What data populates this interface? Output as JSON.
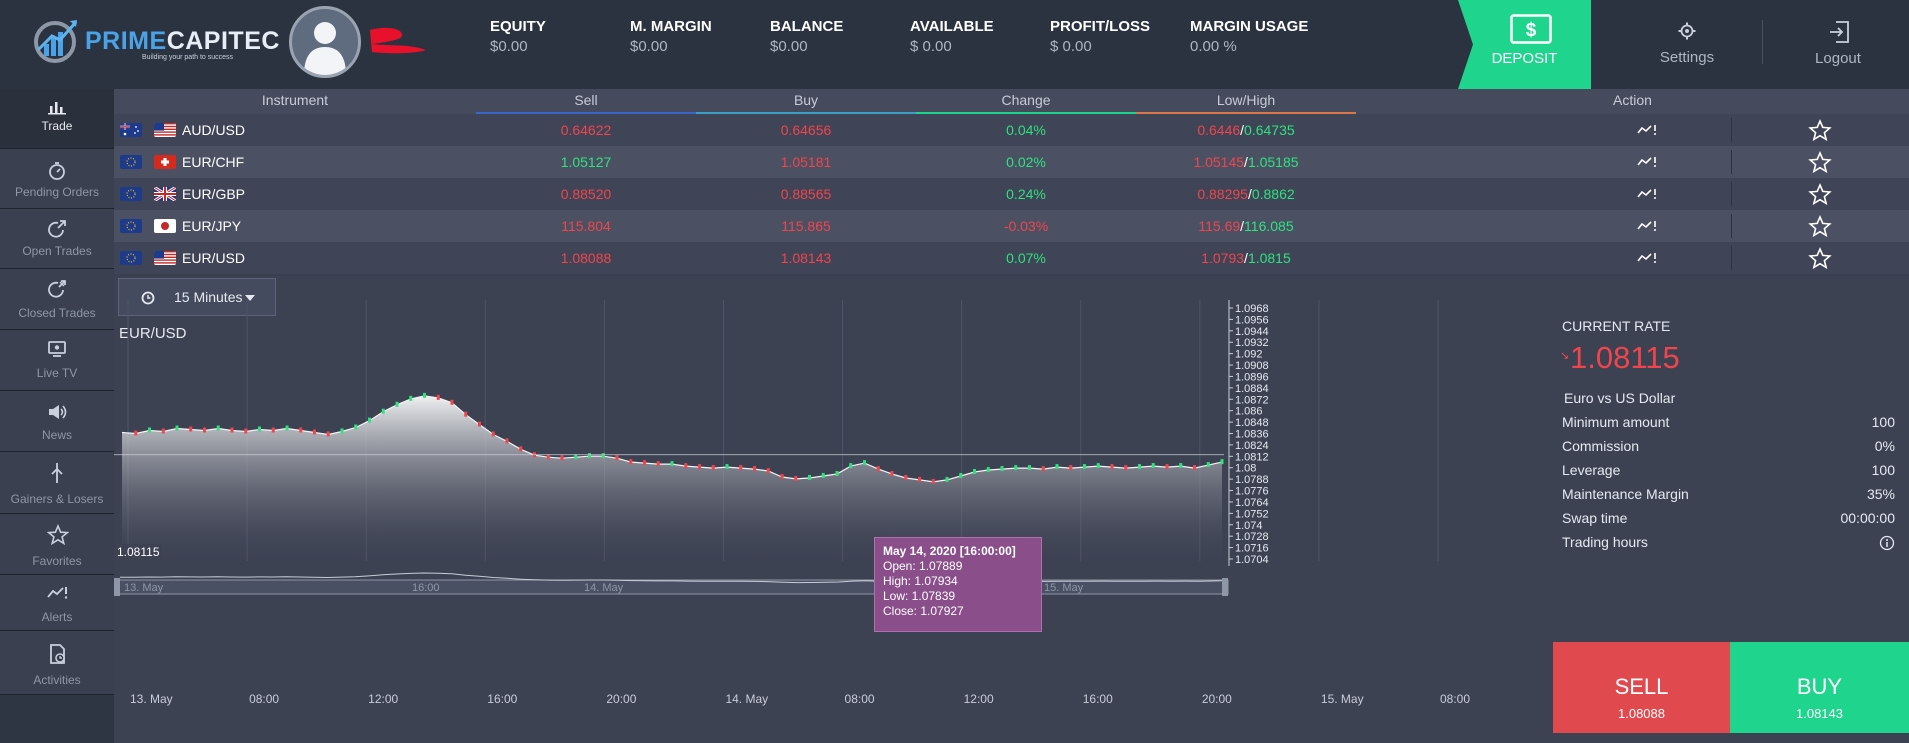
{
  "brand": {
    "name_part1": "PRIME",
    "name_part2": "CAPITEC",
    "tagline": "Building your path to success"
  },
  "header": {
    "metrics": [
      {
        "label": "EQUITY",
        "value": "$0.00"
      },
      {
        "label": "M. MARGIN",
        "value": "$0.00"
      },
      {
        "label": "BALANCE",
        "value": "$0.00"
      },
      {
        "label": "AVAILABLE",
        "value": "$ 0.00"
      },
      {
        "label": "PROFIT/LOSS",
        "value": "$ 0.00"
      },
      {
        "label": "MARGIN USAGE",
        "value": "0.00 %"
      }
    ],
    "deposit_label": "DEPOSIT",
    "settings_label": "Settings",
    "logout_label": "Logout"
  },
  "sidebar": {
    "items": [
      {
        "label": "Trade",
        "icon": "chart-bars-icon",
        "active": true
      },
      {
        "label": "Pending Orders",
        "icon": "timer-icon"
      },
      {
        "label": "Open Trades",
        "icon": "open-trade-icon"
      },
      {
        "label": "Closed Trades",
        "icon": "closed-trade-icon"
      },
      {
        "label": "Live TV",
        "icon": "tv-icon"
      },
      {
        "label": "News",
        "icon": "megaphone-icon"
      },
      {
        "label": "Gainers & Losers",
        "icon": "gainers-icon"
      },
      {
        "label": "Favorites",
        "icon": "star-icon"
      },
      {
        "label": "Alerts",
        "icon": "alert-icon"
      },
      {
        "label": "Activities",
        "icon": "activity-icon"
      }
    ]
  },
  "table": {
    "columns": [
      "Instrument",
      "Sell",
      "Buy",
      "Change",
      "Low/High",
      "Action"
    ],
    "rows": [
      {
        "instrument": "AUD/USD",
        "sell": "0.64622",
        "buy": "0.64656",
        "change": "0.04%",
        "low": "0.6446",
        "high": "0.64735",
        "sell_color": "red",
        "buy_color": "red",
        "change_color": "green",
        "low_color": "red",
        "high_color": "green"
      },
      {
        "instrument": "EUR/CHF",
        "sell": "1.05127",
        "buy": "1.05181",
        "change": "0.02%",
        "low": "1.05145",
        "high": "1.05185",
        "sell_color": "green",
        "buy_color": "red",
        "change_color": "green",
        "low_color": "red",
        "high_color": "green"
      },
      {
        "instrument": "EUR/GBP",
        "sell": "0.88520",
        "buy": "0.88565",
        "change": "0.24%",
        "low": "0.88295",
        "high": "0.8862",
        "sell_color": "red",
        "buy_color": "red",
        "change_color": "green",
        "low_color": "red",
        "high_color": "green"
      },
      {
        "instrument": "EUR/JPY",
        "sell": "115.804",
        "buy": "115.865",
        "change": "-0.03%",
        "low": "115.69",
        "high": "116.085",
        "sell_color": "red",
        "buy_color": "red",
        "change_color": "red",
        "low_color": "red",
        "high_color": "green"
      },
      {
        "instrument": "EUR/USD",
        "sell": "1.08088",
        "buy": "1.08143",
        "change": "0.07%",
        "low": "1.0793",
        "high": "1.0815",
        "sell_color": "red",
        "buy_color": "red",
        "change_color": "green",
        "low_color": "red",
        "high_color": "green"
      }
    ],
    "low_high_separator": "/"
  },
  "chart_toolbar": {
    "timeframe": "15 Minutes"
  },
  "chart_data": {
    "type": "line",
    "title": "EUR/USD",
    "xlabel": "",
    "ylabel": "",
    "ylim": [
      1.0704,
      1.0968
    ],
    "y_ticks": [
      "1.0968",
      "1.0956",
      "1.0944",
      "1.0932",
      "1.092",
      "1.0908",
      "1.0896",
      "1.0884",
      "1.0872",
      "1.086",
      "1.0848",
      "1.0836",
      "1.0824",
      "1.0812",
      "1.08",
      "1.0788",
      "1.0776",
      "1.0764",
      "1.0752",
      "1.074",
      "1.0728",
      "1.0716",
      "1.0704"
    ],
    "x_ticks": [
      "13. May",
      "08:00",
      "12:00",
      "16:00",
      "20:00",
      "14. May",
      "08:00",
      "12:00",
      "16:00",
      "20:00",
      "15. May",
      "08:00"
    ],
    "navigator_ticks": [
      "13. May",
      "16:00",
      "14. May",
      "16:00",
      "15. May"
    ],
    "series": [
      {
        "values": [
          1.0834,
          1.0833,
          1.0836,
          1.0835,
          1.0838,
          1.0837,
          1.0836,
          1.0838,
          1.0836,
          1.0835,
          1.0837,
          1.0836,
          1.0838,
          1.0836,
          1.0834,
          1.0832,
          1.0835,
          1.0839,
          1.0846,
          1.0855,
          1.0862,
          1.0868,
          1.0871,
          1.0869,
          1.0864,
          1.0852,
          1.0842,
          1.0832,
          1.0825,
          1.0817,
          1.0811,
          1.0809,
          1.0808,
          1.0809,
          1.081,
          1.081,
          1.0808,
          1.0804,
          1.0803,
          1.0802,
          1.0802,
          1.08,
          1.0799,
          1.0798,
          1.0799,
          1.0798,
          1.0797,
          1.0795,
          1.0789,
          1.0787,
          1.0788,
          1.079,
          1.0792,
          1.08,
          1.0803,
          1.0797,
          1.0792,
          1.0788,
          1.0786,
          1.0784,
          1.0786,
          1.079,
          1.0794,
          1.0796,
          1.0797,
          1.0798,
          1.0798,
          1.0797,
          1.0799,
          1.0798,
          1.0799,
          1.08,
          1.0799,
          1.0798,
          1.0799,
          1.08,
          1.0799,
          1.08,
          1.0798,
          1.0801,
          1.0804
        ]
      }
    ],
    "current_value": "1.08115",
    "tooltip": {
      "header": "May 14, 2020 [16:00:00]",
      "open": "Open: 1.07889",
      "high": "High: 1.07934",
      "low": "Low: 1.07839",
      "close": "Close: 1.07927"
    }
  },
  "info_panel": {
    "title": "CURRENT RATE",
    "rate": "1.08115",
    "instrument_name": "Euro vs US Dollar",
    "rows": [
      {
        "label": "Minimum amount",
        "value": "100"
      },
      {
        "label": "Commission",
        "value": "0%"
      },
      {
        "label": "Leverage",
        "value": "100"
      },
      {
        "label": "Maintenance Margin",
        "value": "35%"
      },
      {
        "label": "Swap time",
        "value": "00:00:00"
      },
      {
        "label": "Trading hours",
        "value": ""
      }
    ],
    "sell_label": "SELL",
    "sell_value": "1.08088",
    "buy_label": "BUY",
    "buy_value": "1.08143"
  },
  "colors": {
    "header_bg": "#2c3340",
    "deposit": "#1fd48c",
    "sell": "#e04a4e",
    "buy": "#1fd48c",
    "up": "#2ee27e",
    "down": "#f0454c",
    "tooltip": "#8a4f8b"
  }
}
